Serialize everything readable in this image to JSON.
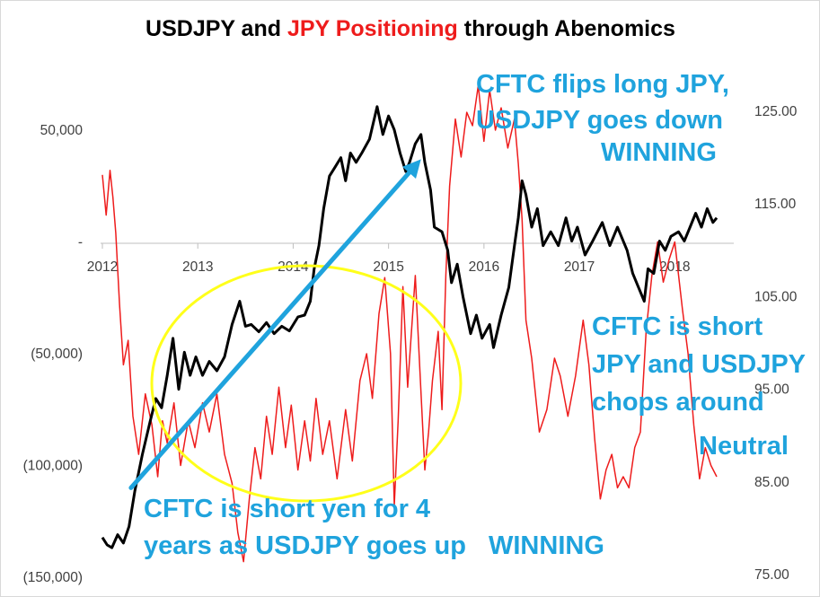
{
  "chart_data": {
    "type": "line",
    "title_parts": [
      {
        "text": "USDJPY and ",
        "color": "#000000"
      },
      {
        "text": "JPY Positioning",
        "color": "#ee1c1c"
      },
      {
        "text": " through Abenomics",
        "color": "#000000"
      }
    ],
    "x_ticks": [
      "2012",
      "2013",
      "2014",
      "2015",
      "2016",
      "2017",
      "2018"
    ],
    "xlim": [
      2012.0,
      2018.6
    ],
    "y_left": {
      "ticks": [
        "50,000",
        "-",
        "(50,000)",
        "(100,000)",
        "(150,000)"
      ],
      "tick_values": [
        50000,
        0,
        -50000,
        -100000,
        -150000
      ],
      "ylim": [
        -150000,
        50000
      ]
    },
    "y_right": {
      "ticks": [
        "125.00",
        "115.00",
        "105.00",
        "95.00",
        "85.00",
        "75.00"
      ],
      "tick_values": [
        125,
        115,
        105,
        95,
        85,
        75
      ],
      "ylim": [
        75,
        125
      ]
    },
    "grid": false,
    "series": [
      {
        "name": "JPY Positioning",
        "axis": "left",
        "color": "#ee1c1c",
        "points": [
          [
            2012.0,
            30000
          ],
          [
            2012.04,
            12000
          ],
          [
            2012.08,
            32000
          ],
          [
            2012.11,
            20000
          ],
          [
            2012.14,
            4000
          ],
          [
            2012.18,
            -28000
          ],
          [
            2012.22,
            -55000
          ],
          [
            2012.27,
            -44000
          ],
          [
            2012.32,
            -78000
          ],
          [
            2012.38,
            -95000
          ],
          [
            2012.45,
            -68000
          ],
          [
            2012.52,
            -82000
          ],
          [
            2012.58,
            -105000
          ],
          [
            2012.63,
            -80000
          ],
          [
            2012.68,
            -90000
          ],
          [
            2012.75,
            -72000
          ],
          [
            2012.82,
            -100000
          ],
          [
            2012.9,
            -80000
          ],
          [
            2012.97,
            -92000
          ],
          [
            2013.05,
            -72000
          ],
          [
            2013.12,
            -85000
          ],
          [
            2013.2,
            -68000
          ],
          [
            2013.28,
            -95000
          ],
          [
            2013.36,
            -108000
          ],
          [
            2013.42,
            -130000
          ],
          [
            2013.48,
            -143000
          ],
          [
            2013.54,
            -115000
          ],
          [
            2013.6,
            -92000
          ],
          [
            2013.66,
            -106000
          ],
          [
            2013.72,
            -78000
          ],
          [
            2013.78,
            -95000
          ],
          [
            2013.85,
            -65000
          ],
          [
            2013.92,
            -92000
          ],
          [
            2013.98,
            -73000
          ],
          [
            2014.05,
            -102000
          ],
          [
            2014.12,
            -80000
          ],
          [
            2014.18,
            -98000
          ],
          [
            2014.24,
            -70000
          ],
          [
            2014.31,
            -95000
          ],
          [
            2014.38,
            -80000
          ],
          [
            2014.46,
            -106000
          ],
          [
            2014.55,
            -75000
          ],
          [
            2014.62,
            -98000
          ],
          [
            2014.7,
            -62000
          ],
          [
            2014.77,
            -50000
          ],
          [
            2014.83,
            -70000
          ],
          [
            2014.9,
            -32000
          ],
          [
            2014.96,
            -16000
          ],
          [
            2015.02,
            -50000
          ],
          [
            2015.06,
            -118000
          ],
          [
            2015.1,
            -80000
          ],
          [
            2015.15,
            -20000
          ],
          [
            2015.2,
            -65000
          ],
          [
            2015.28,
            -15000
          ],
          [
            2015.32,
            -50000
          ],
          [
            2015.38,
            -102000
          ],
          [
            2015.42,
            -85000
          ],
          [
            2015.46,
            -62000
          ],
          [
            2015.52,
            -40000
          ],
          [
            2015.56,
            -75000
          ],
          [
            2015.6,
            -15000
          ],
          [
            2015.64,
            25000
          ],
          [
            2015.7,
            55000
          ],
          [
            2015.76,
            38000
          ],
          [
            2015.82,
            58000
          ],
          [
            2015.88,
            52000
          ],
          [
            2015.94,
            70000
          ],
          [
            2016.0,
            45000
          ],
          [
            2016.06,
            68000
          ],
          [
            2016.12,
            50000
          ],
          [
            2016.18,
            60000
          ],
          [
            2016.25,
            42000
          ],
          [
            2016.32,
            55000
          ],
          [
            2016.36,
            35000
          ],
          [
            2016.4,
            10000
          ],
          [
            2016.44,
            -35000
          ],
          [
            2016.5,
            -52000
          ],
          [
            2016.58,
            -85000
          ],
          [
            2016.66,
            -75000
          ],
          [
            2016.74,
            -52000
          ],
          [
            2016.8,
            -60000
          ],
          [
            2016.88,
            -78000
          ],
          [
            2016.96,
            -60000
          ],
          [
            2017.04,
            -35000
          ],
          [
            2017.1,
            -55000
          ],
          [
            2017.16,
            -88000
          ],
          [
            2017.22,
            -115000
          ],
          [
            2017.28,
            -102000
          ],
          [
            2017.34,
            -95000
          ],
          [
            2017.4,
            -110000
          ],
          [
            2017.46,
            -105000
          ],
          [
            2017.52,
            -110000
          ],
          [
            2017.58,
            -92000
          ],
          [
            2017.64,
            -85000
          ],
          [
            2017.7,
            -40000
          ],
          [
            2017.76,
            -15000
          ],
          [
            2017.82,
            0
          ],
          [
            2017.88,
            -18000
          ],
          [
            2017.94,
            -8000
          ],
          [
            2018.0,
            0
          ],
          [
            2018.08,
            -30000
          ],
          [
            2018.14,
            -50000
          ],
          [
            2018.2,
            -82000
          ],
          [
            2018.26,
            -106000
          ],
          [
            2018.32,
            -92000
          ],
          [
            2018.38,
            -100000
          ],
          [
            2018.44,
            -105000
          ]
        ]
      },
      {
        "name": "USDJPY",
        "axis": "right",
        "color": "#000000",
        "points": [
          [
            2012.0,
            79.0
          ],
          [
            2012.05,
            78.2
          ],
          [
            2012.1,
            77.9
          ],
          [
            2012.16,
            79.3
          ],
          [
            2012.22,
            78.4
          ],
          [
            2012.28,
            80.2
          ],
          [
            2012.34,
            84.0
          ],
          [
            2012.42,
            88.0
          ],
          [
            2012.5,
            91.5
          ],
          [
            2012.56,
            94.0
          ],
          [
            2012.62,
            93.0
          ],
          [
            2012.68,
            96.5
          ],
          [
            2012.74,
            100.5
          ],
          [
            2012.8,
            95.0
          ],
          [
            2012.86,
            99.0
          ],
          [
            2012.92,
            96.5
          ],
          [
            2012.98,
            98.5
          ],
          [
            2013.05,
            96.5
          ],
          [
            2013.12,
            98.0
          ],
          [
            2013.2,
            97.0
          ],
          [
            2013.28,
            98.5
          ],
          [
            2013.36,
            102.0
          ],
          [
            2013.44,
            104.5
          ],
          [
            2013.5,
            101.8
          ],
          [
            2013.56,
            102.0
          ],
          [
            2013.64,
            101.2
          ],
          [
            2013.72,
            102.2
          ],
          [
            2013.8,
            101.0
          ],
          [
            2013.88,
            101.8
          ],
          [
            2013.96,
            101.3
          ],
          [
            2014.05,
            102.8
          ],
          [
            2014.12,
            103.0
          ],
          [
            2014.18,
            104.5
          ],
          [
            2014.22,
            108.0
          ],
          [
            2014.27,
            110.5
          ],
          [
            2014.32,
            114.5
          ],
          [
            2014.38,
            118.0
          ],
          [
            2014.44,
            119.0
          ],
          [
            2014.5,
            120.0
          ],
          [
            2014.55,
            117.5
          ],
          [
            2014.6,
            120.5
          ],
          [
            2014.66,
            119.5
          ],
          [
            2014.72,
            120.5
          ],
          [
            2014.8,
            122.0
          ],
          [
            2014.88,
            125.5
          ],
          [
            2014.94,
            122.5
          ],
          [
            2015.0,
            124.5
          ],
          [
            2015.06,
            123.0
          ],
          [
            2015.12,
            120.5
          ],
          [
            2015.18,
            118.5
          ],
          [
            2015.22,
            119.5
          ],
          [
            2015.28,
            121.5
          ],
          [
            2015.34,
            122.5
          ],
          [
            2015.38,
            119.5
          ],
          [
            2015.44,
            116.5
          ],
          [
            2015.48,
            112.5
          ],
          [
            2015.56,
            112.0
          ],
          [
            2015.62,
            110.0
          ],
          [
            2015.66,
            106.5
          ],
          [
            2015.72,
            108.5
          ],
          [
            2015.78,
            105.0
          ],
          [
            2015.86,
            101.0
          ],
          [
            2015.92,
            103.0
          ],
          [
            2015.98,
            100.5
          ],
          [
            2016.06,
            102.0
          ],
          [
            2016.1,
            99.5
          ],
          [
            2016.18,
            103.0
          ],
          [
            2016.26,
            106.0
          ],
          [
            2016.32,
            110.5
          ],
          [
            2016.36,
            113.5
          ],
          [
            2016.4,
            117.5
          ],
          [
            2016.44,
            116.0
          ],
          [
            2016.5,
            112.5
          ],
          [
            2016.56,
            114.5
          ],
          [
            2016.62,
            110.5
          ],
          [
            2016.7,
            112.0
          ],
          [
            2016.78,
            110.5
          ],
          [
            2016.86,
            113.5
          ],
          [
            2016.92,
            111.0
          ],
          [
            2016.98,
            112.5
          ],
          [
            2017.06,
            109.5
          ],
          [
            2017.14,
            111.0
          ],
          [
            2017.24,
            113.0
          ],
          [
            2017.32,
            110.5
          ],
          [
            2017.4,
            112.5
          ],
          [
            2017.5,
            110.0
          ],
          [
            2017.56,
            107.5
          ],
          [
            2017.62,
            106.0
          ],
          [
            2017.68,
            104.5
          ],
          [
            2017.72,
            108.0
          ],
          [
            2017.78,
            107.5
          ],
          [
            2017.84,
            111.0
          ],
          [
            2017.9,
            110.0
          ],
          [
            2017.96,
            111.5
          ],
          [
            2018.04,
            112.0
          ],
          [
            2018.1,
            111.0
          ],
          [
            2018.16,
            112.5
          ],
          [
            2018.22,
            114.0
          ],
          [
            2018.28,
            112.5
          ],
          [
            2018.34,
            114.5
          ],
          [
            2018.4,
            113.0
          ],
          [
            2018.44,
            113.5
          ]
        ]
      }
    ],
    "annotations": {
      "ellipse_color": "#ffff1a",
      "arrow_color": "#1fa3dd",
      "arrow_from": {
        "x": 2012.3,
        "y_left": -110000
      },
      "arrow_to": {
        "x": 2015.34,
        "y_left": 37000
      },
      "texts": [
        {
          "name": "annotation-flip-long-1",
          "text": "CFTC flips long JPY,"
        },
        {
          "name": "annotation-flip-long-2",
          "text": "USDJPY goes down"
        },
        {
          "name": "annotation-flip-long-3",
          "text": "WINNING"
        },
        {
          "name": "annotation-short-jpy-1",
          "text": "CFTC is short"
        },
        {
          "name": "annotation-short-jpy-2",
          "text": "JPY and USDJPY"
        },
        {
          "name": "annotation-short-jpy-3",
          "text": "chops around"
        },
        {
          "name": "annotation-neutral",
          "text": "Neutral"
        },
        {
          "name": "annotation-short-yen-1",
          "text": "CFTC is short yen for 4"
        },
        {
          "name": "annotation-short-yen-2",
          "text": "years as USDJPY goes up"
        },
        {
          "name": "annotation-winning",
          "text": "WINNING"
        }
      ]
    }
  }
}
